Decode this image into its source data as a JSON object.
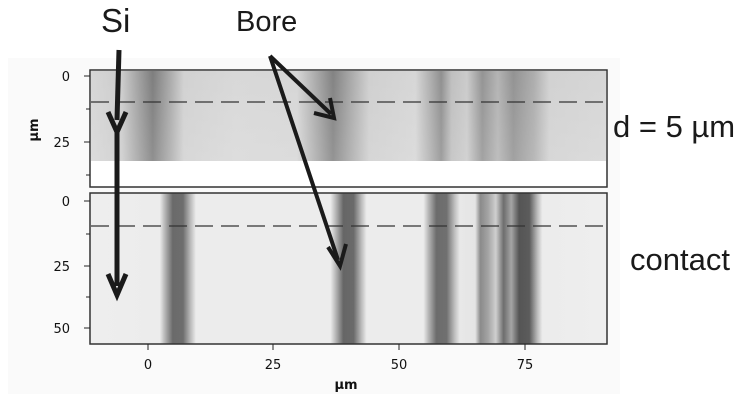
{
  "annotations": {
    "si": "Si",
    "bore": "Bore",
    "top_condition": "d = 5 µm",
    "bottom_condition": "contact"
  },
  "top_panel": {
    "y_ticks": [
      "0",
      "25"
    ],
    "y_unit": "µm"
  },
  "bottom_panel": {
    "y_ticks": [
      "0",
      "25",
      "50"
    ],
    "x_ticks": [
      "0",
      "25",
      "50",
      "75"
    ],
    "x_unit": "µm",
    "y_unit": "µm"
  }
}
